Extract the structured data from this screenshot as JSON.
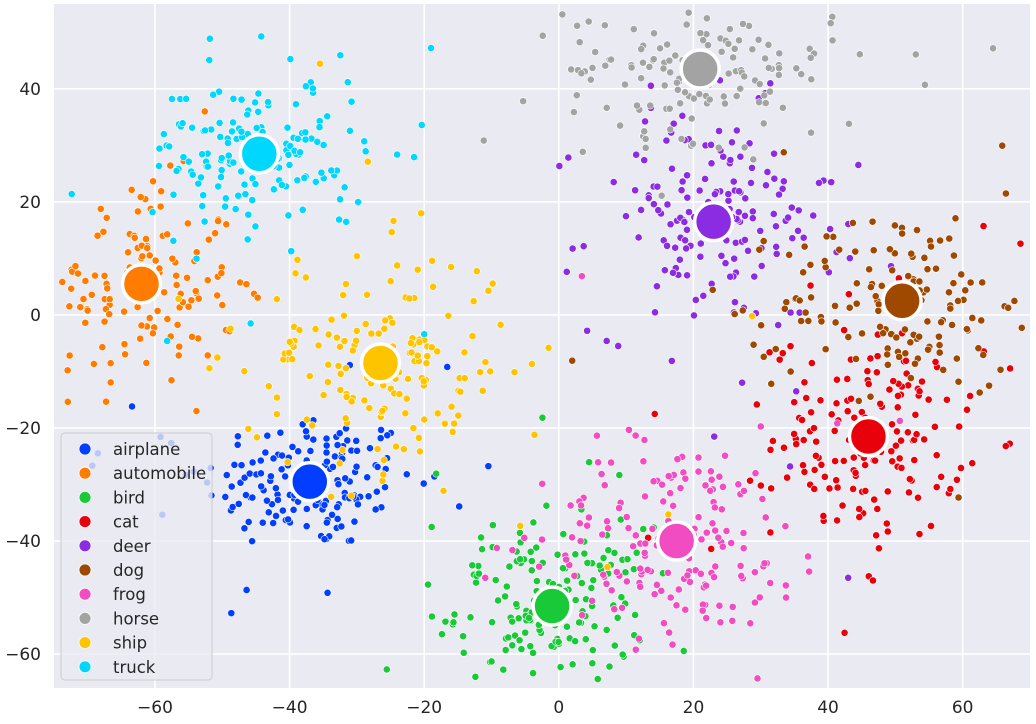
{
  "chart_data": {
    "type": "scatter",
    "title": "",
    "xlabel": "",
    "ylabel": "",
    "xlim": [
      -75,
      70
    ],
    "ylim": [
      -66,
      55
    ],
    "x_ticks": [
      -60,
      -40,
      -20,
      0,
      20,
      40,
      60
    ],
    "y_ticks": [
      -60,
      -40,
      -20,
      0,
      20,
      40
    ],
    "x_tick_labels": [
      "−60",
      "−40",
      "−20",
      "0",
      "20",
      "40",
      "60"
    ],
    "y_tick_labels": [
      "−60",
      "−40",
      "−20",
      "0",
      "20",
      "40"
    ],
    "grid": true,
    "background_color": "#eaeaf2",
    "legend_position": "lower-left",
    "series": [
      {
        "name": "airplane",
        "color": "#023eff",
        "centroid": [
          -37,
          -29.5
        ],
        "spread": [
          8,
          6
        ],
        "count": 180
      },
      {
        "name": "automobile",
        "color": "#ff7c00",
        "centroid": [
          -62,
          5.5
        ],
        "spread": [
          7,
          9
        ],
        "count": 150
      },
      {
        "name": "bird",
        "color": "#1ac938",
        "centroid": [
          -1,
          -51.5
        ],
        "spread": [
          7,
          7
        ],
        "count": 170
      },
      {
        "name": "cat",
        "color": "#e8000b",
        "centroid": [
          46,
          -21.5
        ],
        "spread": [
          7,
          9
        ],
        "count": 180
      },
      {
        "name": "deer",
        "color": "#8b2be2",
        "centroid": [
          23,
          16.5
        ],
        "spread": [
          9,
          10
        ],
        "count": 170
      },
      {
        "name": "dog",
        "color": "#9f4800",
        "centroid": [
          51,
          2.5
        ],
        "spread": [
          9,
          8
        ],
        "count": 160
      },
      {
        "name": "frog",
        "color": "#f14cc1",
        "centroid": [
          17.5,
          -40
        ],
        "spread": [
          10,
          9
        ],
        "count": 180
      },
      {
        "name": "horse",
        "color": "#a3a3a3",
        "centroid": [
          21,
          43.5
        ],
        "spread": [
          10,
          6
        ],
        "count": 150
      },
      {
        "name": "ship",
        "color": "#ffc400",
        "centroid": [
          -26.5,
          -8.5
        ],
        "spread": [
          10,
          10
        ],
        "count": 170
      },
      {
        "name": "truck",
        "color": "#00d7ff",
        "centroid": [
          -44.5,
          28.5
        ],
        "spread": [
          8,
          7
        ],
        "count": 160
      }
    ]
  }
}
